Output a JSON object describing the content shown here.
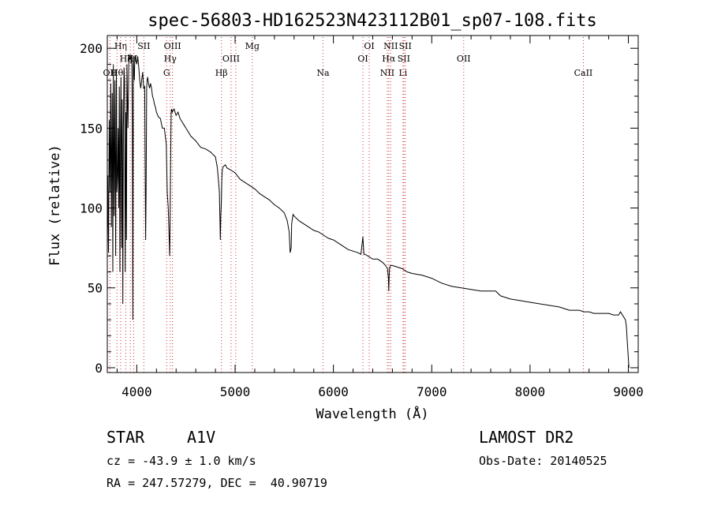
{
  "chart_data": {
    "type": "line",
    "title": "spec-56803-HD162523N423112B01_sp07-108.fits",
    "xlabel": "Wavelength (Å)",
    "ylabel": "Flux (relative)",
    "xlim": [
      3700,
      9100
    ],
    "ylim": [
      -3,
      208
    ],
    "xticks": [
      "4000",
      "5000",
      "6000",
      "7000",
      "8000",
      "9000"
    ],
    "yticks": [
      "0",
      "50",
      "100",
      "150",
      "200"
    ],
    "line_color": "#000000",
    "marker_color": "#d03030",
    "series": [
      {
        "x": [
          3700,
          3705,
          3712,
          3720,
          3728,
          3735,
          3742,
          3750,
          3756,
          3762,
          3770,
          3778,
          3785,
          3792,
          3798,
          3804,
          3810,
          3816,
          3822,
          3828,
          3834,
          3840,
          3846,
          3852,
          3858,
          3864,
          3870,
          3876,
          3882,
          3889,
          3895,
          3900,
          3905,
          3910,
          3920,
          3930,
          3940,
          3950,
          3955,
          3960,
          3965,
          3970,
          3975,
          3980,
          3990,
          4000,
          4010,
          4020,
          4030,
          4040,
          4050,
          4060,
          4070,
          4080,
          4090,
          4095,
          4100,
          4105,
          4110,
          4120,
          4130,
          4140,
          4150,
          4160,
          4170,
          4180,
          4190,
          4200,
          4220,
          4240,
          4260,
          4280,
          4300,
          4310,
          4320,
          4330,
          4335,
          4340,
          4345,
          4350,
          4355,
          4360,
          4380,
          4400,
          4420,
          4440,
          4460,
          4480,
          4500,
          4520,
          4550,
          4600,
          4650,
          4700,
          4750,
          4800,
          4820,
          4840,
          4850,
          4855,
          4861,
          4865,
          4870,
          4880,
          4900,
          4920,
          4950,
          5000,
          5050,
          5100,
          5150,
          5200,
          5250,
          5300,
          5350,
          5400,
          5450,
          5500,
          5530,
          5550,
          5560,
          5570,
          5575,
          5580,
          5590,
          5600,
          5650,
          5700,
          5750,
          5800,
          5850,
          5900,
          5950,
          6000,
          6050,
          6100,
          6150,
          6200,
          6250,
          6280,
          6300,
          6310,
          6320,
          6350,
          6400,
          6450,
          6500,
          6530,
          6550,
          6560,
          6563,
          6566,
          6570,
          6580,
          6600,
          6650,
          6700,
          6750,
          6800,
          6900,
          7000,
          7100,
          7200,
          7300,
          7400,
          7500,
          7600,
          7650,
          7700,
          7750,
          7800,
          7900,
          8000,
          8100,
          8200,
          8300,
          8350,
          8400,
          8450,
          8500,
          8550,
          8600,
          8650,
          8700,
          8750,
          8800,
          8850,
          8900,
          8920,
          8950,
          8970,
          8980,
          8990,
          9000,
          9005
        ],
        "y": [
          80,
          120,
          72,
          155,
          110,
          178,
          88,
          172,
          60,
          190,
          95,
          180,
          70,
          185,
          110,
          120,
          150,
          100,
          176,
          60,
          145,
          182,
          75,
          168,
          40,
          150,
          188,
          180,
          60,
          160,
          80,
          190,
          170,
          150,
          196,
          193,
          195,
          190,
          150,
          30,
          195,
          185,
          180,
          195,
          193,
          190,
          195,
          188,
          180,
          175,
          180,
          185,
          175,
          176,
          80,
          110,
          175,
          180,
          182,
          178,
          175,
          178,
          175,
          170,
          168,
          165,
          163,
          160,
          157,
          156,
          150,
          150,
          140,
          110,
          100,
          80,
          70,
          100,
          135,
          160,
          162,
          160,
          162,
          158,
          160,
          156,
          154,
          152,
          150,
          148,
          145,
          142,
          138,
          137,
          135,
          132,
          125,
          110,
          80,
          95,
          105,
          118,
          124,
          126,
          127,
          125,
          124,
          122,
          118,
          116,
          114,
          112,
          109,
          107,
          105,
          102,
          100,
          97,
          92,
          85,
          72,
          75,
          90,
          92,
          96,
          95,
          92,
          90,
          88,
          86,
          85,
          83,
          81,
          80,
          78,
          76,
          74,
          73,
          72,
          71,
          82,
          71,
          71,
          70,
          68,
          68,
          66,
          64,
          62,
          56,
          48,
          55,
          62,
          64,
          64,
          63,
          62,
          60,
          59,
          58,
          56,
          53,
          51,
          50,
          49,
          48,
          48,
          48,
          45,
          44,
          43,
          42,
          41,
          40,
          39,
          38,
          37,
          36,
          36,
          36,
          35,
          35,
          34,
          34,
          34,
          34,
          33,
          33,
          35,
          32,
          30,
          26,
          15,
          6,
          0
        ]
      }
    ],
    "line_markers": [
      {
        "wl": 3727,
        "row": 3,
        "label": "OII"
      },
      {
        "wl": 3798,
        "row": 3,
        "label": "Hθ"
      },
      {
        "wl": 3836,
        "row": 1,
        "label": "Hη"
      },
      {
        "wl": 3889,
        "row": 2,
        "label": "Hζ"
      },
      {
        "wl": 3934,
        "row": 2,
        "label": "K"
      },
      {
        "wl": 3969,
        "row": 2,
        "label": "H"
      },
      {
        "wl": 4072,
        "row": 1,
        "label": "SII"
      },
      {
        "wl": 4304,
        "row": 3,
        "label": "G"
      },
      {
        "wl": 4340,
        "row": 2,
        "label": "Hγ"
      },
      {
        "wl": 4363,
        "row": 1,
        "label": "OIII"
      },
      {
        "wl": 4861,
        "row": 3,
        "label": "Hβ"
      },
      {
        "wl": 4959,
        "row": 2,
        "label": "OIII"
      },
      {
        "wl": 5007,
        "row": 2,
        "label": ""
      },
      {
        "wl": 5175,
        "row": 1,
        "label": "Mg"
      },
      {
        "wl": 5894,
        "row": 3,
        "label": "Na"
      },
      {
        "wl": 6300,
        "row": 2,
        "label": "OI"
      },
      {
        "wl": 6364,
        "row": 1,
        "label": "OI"
      },
      {
        "wl": 6548,
        "row": 3,
        "label": "NII"
      },
      {
        "wl": 6563,
        "row": 2,
        "label": "Hα"
      },
      {
        "wl": 6583,
        "row": 1,
        "label": "NII"
      },
      {
        "wl": 6708,
        "row": 3,
        "label": "Li"
      },
      {
        "wl": 6716,
        "row": 2,
        "label": "SII"
      },
      {
        "wl": 6731,
        "row": 1,
        "label": "SII"
      },
      {
        "wl": 7325,
        "row": 2,
        "label": "OII"
      },
      {
        "wl": 8542,
        "row": 3,
        "label": "CaII"
      }
    ]
  },
  "info": {
    "object_class": "STAR",
    "subclass": "A1V",
    "survey": "LAMOST DR2",
    "cz": "cz = -43.9 ± 1.0 km/s",
    "obs_date": "Obs-Date: 20140525",
    "coords": "RA = 247.57279, DEC =  40.90719"
  }
}
